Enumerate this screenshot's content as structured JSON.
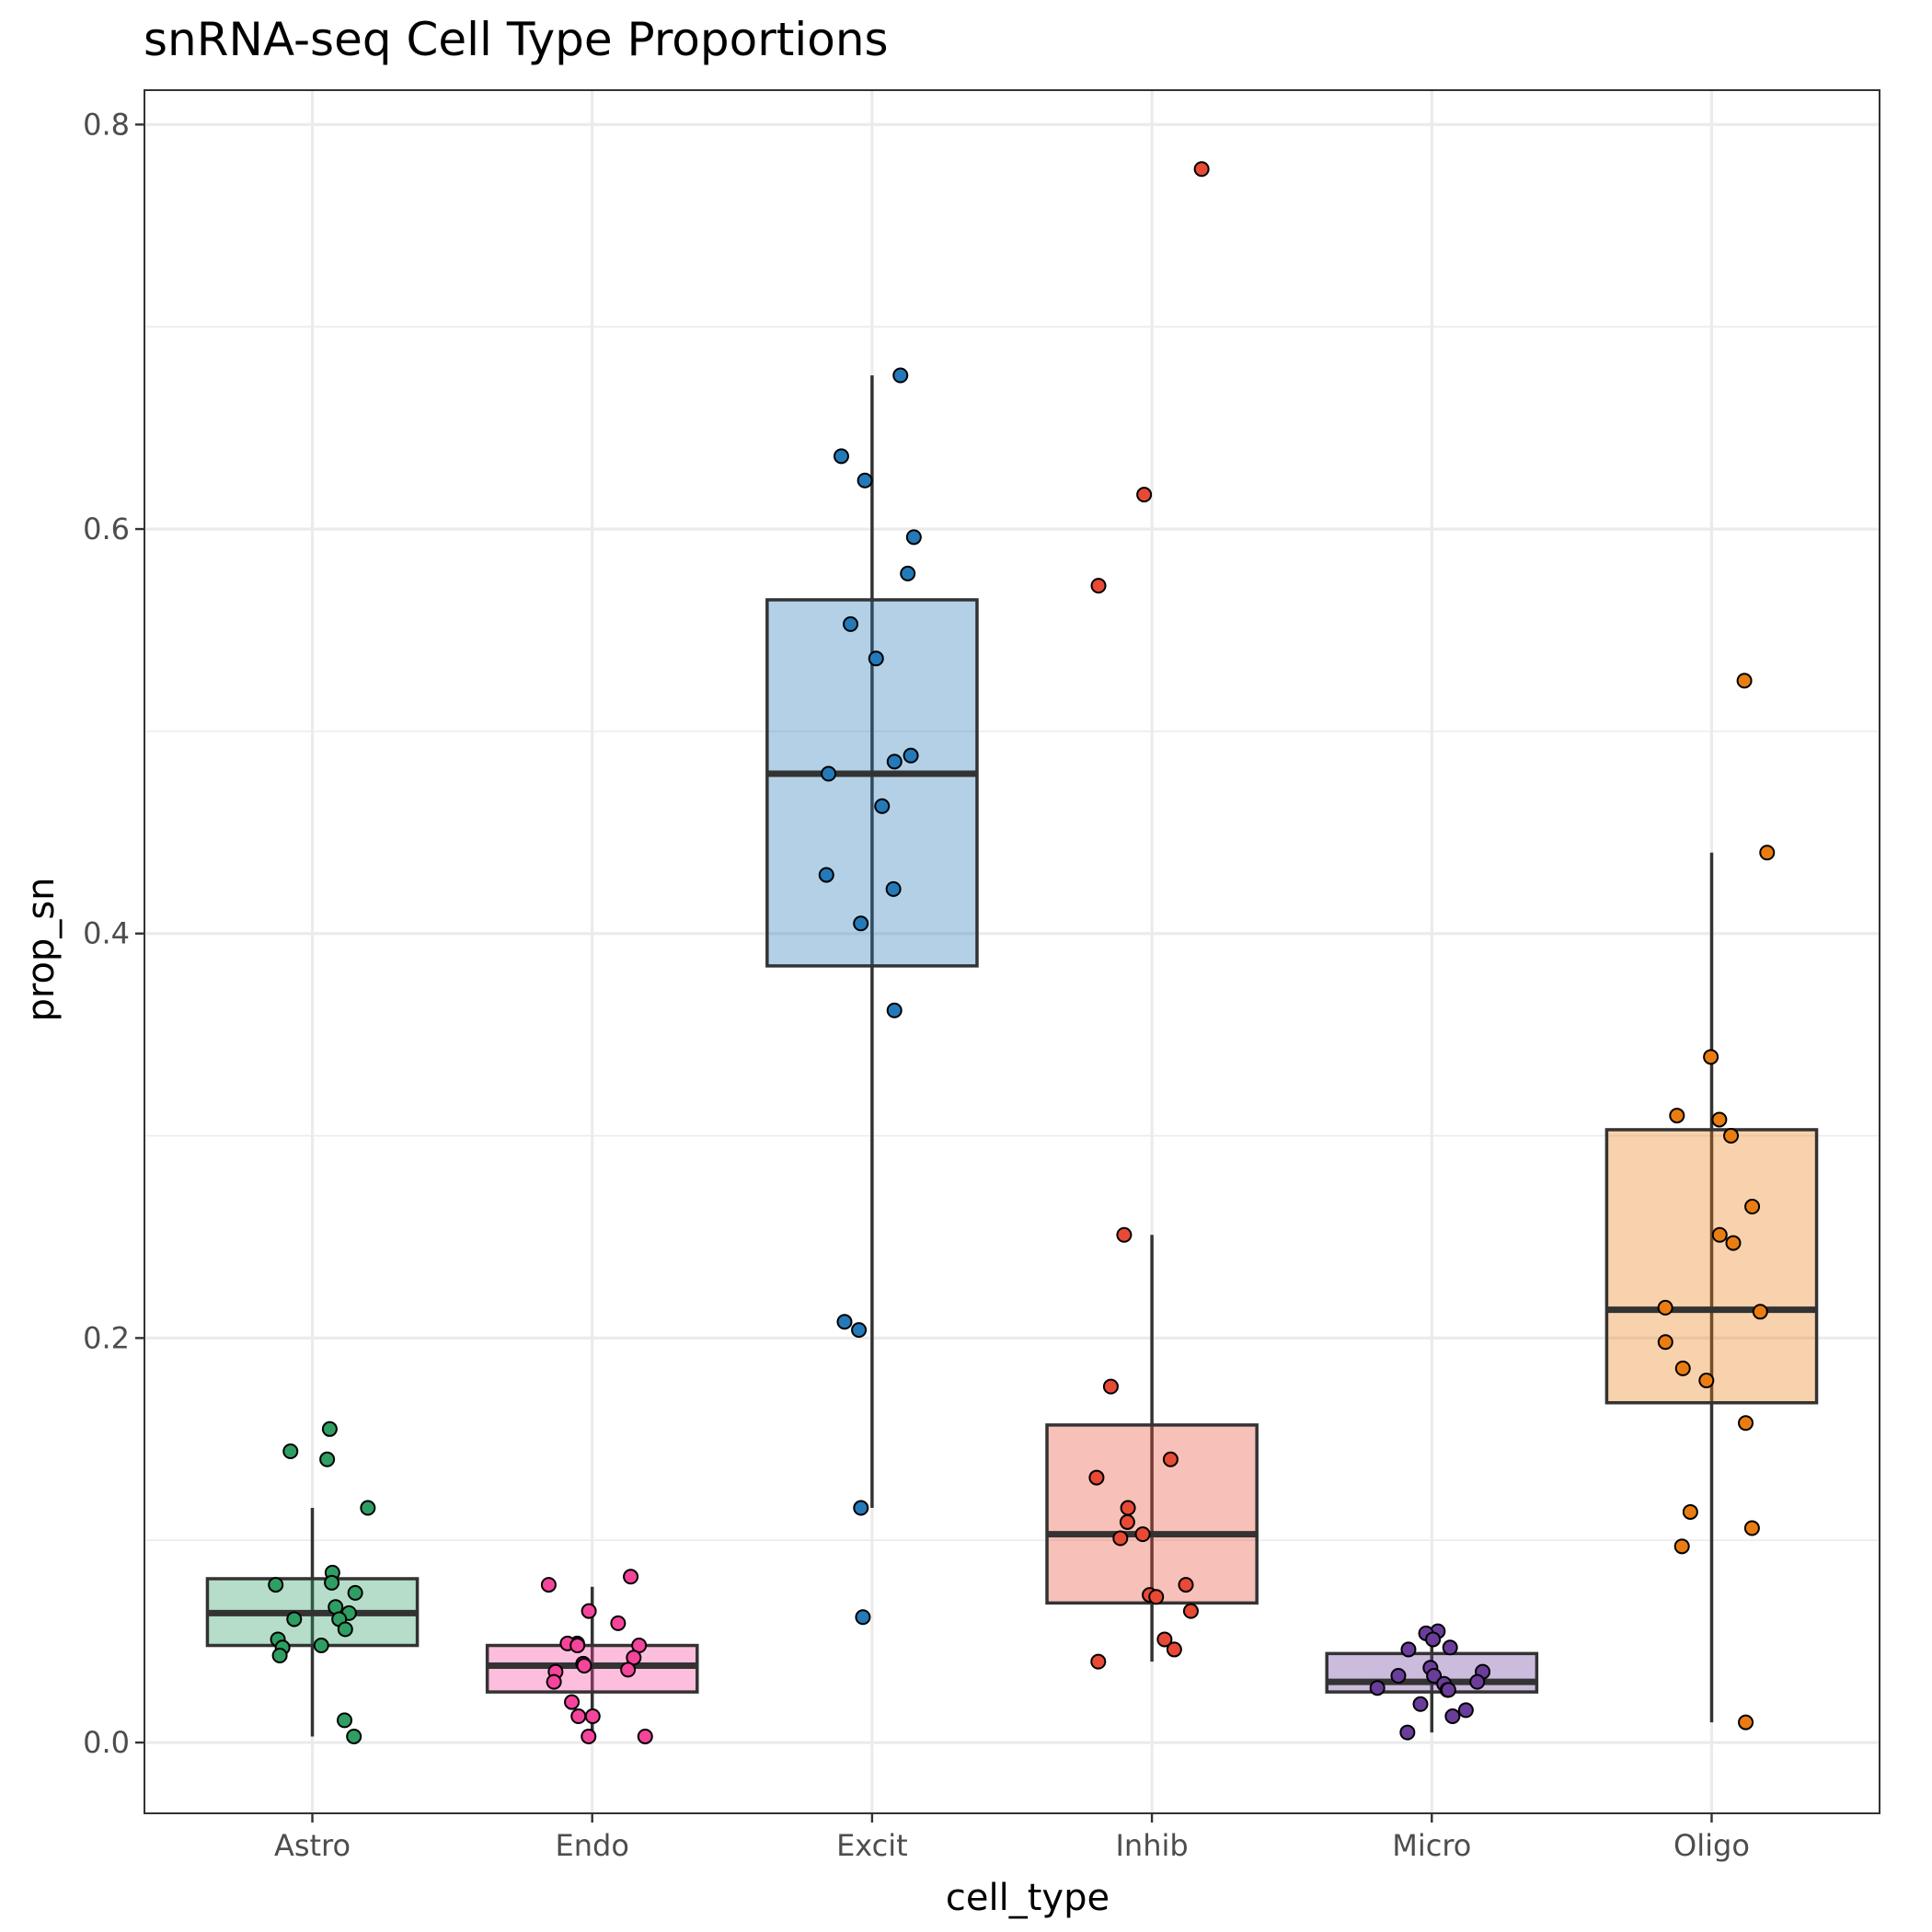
{
  "chart_data": {
    "type": "box",
    "title": "snRNA-seq Cell Type Proportions",
    "xlabel": "cell_type",
    "ylabel": "prop_sn",
    "ylim": [
      -0.035,
      0.817
    ],
    "y_ticks": [
      0.0,
      0.2,
      0.4,
      0.6,
      0.8
    ],
    "y_tick_labels": [
      "0.0",
      "0.2",
      "0.4",
      "0.6",
      "0.8"
    ],
    "grid": true,
    "legend": "none",
    "categories": [
      "Astro",
      "Endo",
      "Excit",
      "Inhib",
      "Micro",
      "Oligo"
    ],
    "colors": {
      "Astro": "#2e9e63",
      "Endo": "#f5449b",
      "Excit": "#2479b8",
      "Inhib": "#e84a35",
      "Micro": "#6a3d9a",
      "Oligo": "#ea7d12"
    },
    "boxes": [
      {
        "category": "Astro",
        "whisker_low": 0.003,
        "q1": 0.048,
        "median": 0.064,
        "q3": 0.081,
        "whisker_high": 0.116
      },
      {
        "category": "Endo",
        "whisker_low": 0.003,
        "q1": 0.025,
        "median": 0.038,
        "q3": 0.048,
        "whisker_high": 0.077
      },
      {
        "category": "Excit",
        "whisker_low": 0.116,
        "q1": 0.384,
        "median": 0.479,
        "q3": 0.565,
        "whisker_high": 0.676
      },
      {
        "category": "Inhib",
        "whisker_low": 0.04,
        "q1": 0.069,
        "median": 0.103,
        "q3": 0.157,
        "whisker_high": 0.251
      },
      {
        "category": "Micro",
        "whisker_low": 0.005,
        "q1": 0.025,
        "median": 0.03,
        "q3": 0.044,
        "whisker_high": 0.055
      },
      {
        "category": "Oligo",
        "whisker_low": 0.01,
        "q1": 0.168,
        "median": 0.214,
        "q3": 0.303,
        "whisker_high": 0.44
      }
    ],
    "points": {
      "Astro": [
        0.155,
        0.144,
        0.14,
        0.116,
        0.084,
        0.079,
        0.078,
        0.074,
        0.067,
        0.064,
        0.061,
        0.061,
        0.056,
        0.051,
        0.048,
        0.047,
        0.043,
        0.011,
        0.003
      ],
      "Endo": [
        0.082,
        0.078,
        0.065,
        0.059,
        0.049,
        0.049,
        0.048,
        0.048,
        0.042,
        0.039,
        0.038,
        0.036,
        0.035,
        0.03,
        0.02,
        0.013,
        0.013,
        0.003,
        0.003
      ],
      "Excit": [
        0.676,
        0.636,
        0.624,
        0.596,
        0.578,
        0.553,
        0.536,
        0.488,
        0.485,
        0.479,
        0.463,
        0.429,
        0.422,
        0.405,
        0.362,
        0.208,
        0.204,
        0.116,
        0.062
      ],
      "Inhib": [
        0.778,
        0.617,
        0.572,
        0.251,
        0.176,
        0.14,
        0.131,
        0.116,
        0.109,
        0.103,
        0.101,
        0.078,
        0.073,
        0.072,
        0.065,
        0.051,
        0.046,
        0.04
      ],
      "Micro": [
        0.055,
        0.054,
        0.051,
        0.047,
        0.046,
        0.037,
        0.035,
        0.033,
        0.033,
        0.03,
        0.029,
        0.027,
        0.026,
        0.026,
        0.019,
        0.016,
        0.013,
        0.005
      ],
      "Oligo": [
        0.525,
        0.44,
        0.339,
        0.31,
        0.308,
        0.3,
        0.265,
        0.251,
        0.247,
        0.215,
        0.213,
        0.198,
        0.185,
        0.179,
        0.158,
        0.114,
        0.106,
        0.097,
        0.01
      ]
    }
  }
}
